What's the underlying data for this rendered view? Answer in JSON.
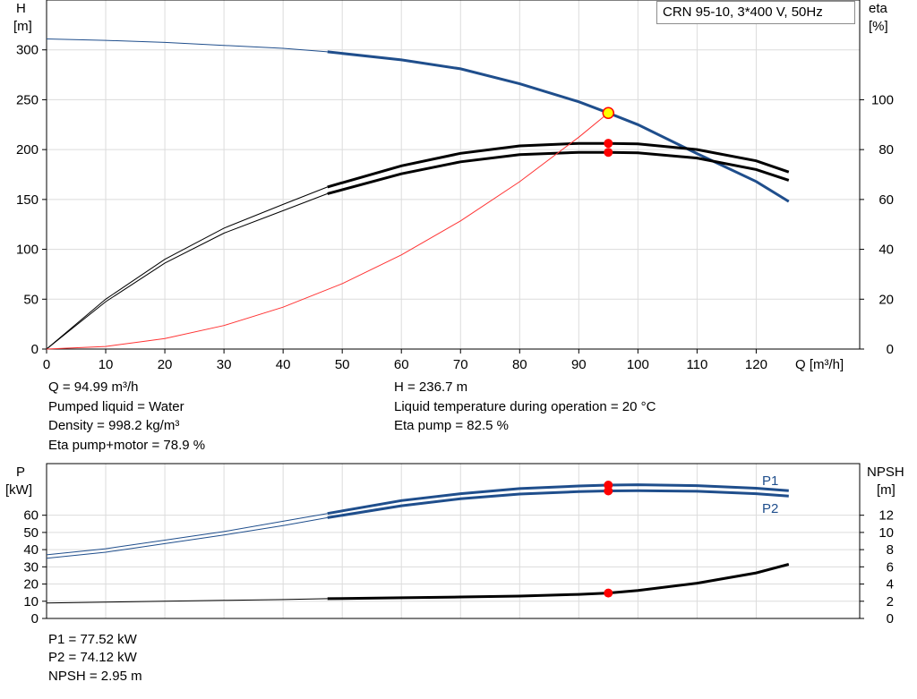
{
  "model": "CRN 95-10, 3*400 V, 50Hz",
  "colors": {
    "head": "#1f4e8c",
    "power": "#1f4e8c",
    "efficiency": "#000000",
    "system_curve": "#ff3333",
    "marker": "#ff0000",
    "duty_point": "#ffff00",
    "grid": "#dcdcdc"
  },
  "info": {
    "q": "Q = 94.99 m³/h",
    "pumped_liquid": "Pumped liquid = Water",
    "density": "Density = 998.2 kg/m³",
    "eta_pump_motor": "Eta pump+motor = 78.9 %",
    "h": "H = 236.7 m",
    "liquid_temp": "Liquid temperature during operation = 20 °C",
    "eta_pump": "Eta pump = 82.5 %",
    "p1": "P1 = 77.52 kW",
    "p2": "P2 = 74.12 kW",
    "npsh": "NPSH = 2.95 m"
  },
  "chart_data": [
    {
      "type": "line",
      "x_label": "Q [m³/h]",
      "y_label_left": [
        "H",
        "[m]"
      ],
      "y_label_right": [
        "eta",
        "[%]"
      ],
      "x_ticks": [
        0,
        10,
        20,
        30,
        40,
        50,
        60,
        70,
        80,
        90,
        100,
        110,
        120
      ],
      "y_left_ticks": [
        0,
        50,
        100,
        150,
        200,
        250,
        300
      ],
      "y_right_ticks": [
        0,
        20,
        40,
        60,
        80,
        100
      ],
      "xlim": [
        0,
        137.5
      ],
      "ylim_left": [
        0,
        350
      ],
      "ylim_right": [
        0,
        140
      ],
      "grid": true,
      "series": [
        {
          "key": "head",
          "axis": "left",
          "x": [
            0,
            10,
            20,
            30,
            40,
            47.5,
            60,
            70,
            80,
            90,
            95,
            100,
            110,
            120,
            125.5
          ],
          "y": [
            311,
            309.5,
            307.5,
            304.5,
            301.5,
            298,
            290,
            281,
            266,
            248,
            236.7,
            225,
            196,
            168,
            148
          ],
          "op_start": 47.5
        },
        {
          "key": "eta_pump",
          "axis": "right",
          "x": [
            0,
            5,
            10,
            20,
            30,
            40,
            47.5,
            60,
            70,
            80,
            90,
            95,
            100,
            110,
            120,
            125.5
          ],
          "y": [
            0,
            10,
            20,
            36,
            48.5,
            58,
            65,
            73.5,
            78.5,
            81.5,
            82.5,
            82.5,
            82.3,
            80,
            75.5,
            71
          ],
          "op_start": 47.5
        },
        {
          "key": "eta_pump_motor",
          "axis": "right",
          "x": [
            0,
            5,
            10,
            20,
            30,
            40,
            47.5,
            60,
            70,
            80,
            90,
            95,
            100,
            110,
            120,
            125.5
          ],
          "y": [
            0,
            9.5,
            19,
            34.5,
            46.5,
            55.5,
            62.3,
            70.3,
            75.1,
            78,
            78.9,
            78.9,
            78.7,
            76.6,
            72,
            67.7
          ],
          "op_start": 47.5
        },
        {
          "key": "system",
          "axis": "left",
          "x": [
            0,
            10,
            20,
            30,
            40,
            50,
            60,
            70,
            80,
            90,
            95
          ],
          "y": [
            0,
            2.6,
            10.5,
            23.6,
            42,
            65.6,
            94.4,
            128.5,
            167.8,
            212.4,
            236.7
          ]
        }
      ],
      "duty_point": {
        "x": 94.99,
        "h": 236.7,
        "eta_pump": 82.5,
        "eta_pump_motor": 78.9
      }
    },
    {
      "type": "line",
      "y_label_left": [
        "P",
        "[kW]"
      ],
      "y_label_right": [
        "NPSH",
        "[m]"
      ],
      "y_left_ticks": [
        0,
        10,
        20,
        30,
        40,
        50,
        60
      ],
      "y_right_ticks": [
        0,
        2,
        4,
        6,
        8,
        10,
        12
      ],
      "ylim_left": [
        0,
        90
      ],
      "ylim_right": [
        0,
        18
      ],
      "grid": true,
      "series": [
        {
          "key": "p1",
          "name": "P1",
          "axis": "left",
          "x": [
            0,
            10,
            20,
            30,
            40,
            47.5,
            60,
            70,
            80,
            90,
            95,
            100,
            110,
            120,
            125.5
          ],
          "y": [
            37,
            40.5,
            45.5,
            50.5,
            56.5,
            61,
            68.5,
            72.5,
            75.5,
            77,
            77.52,
            77.7,
            77.2,
            75.7,
            74.3
          ],
          "op_start": 47.5
        },
        {
          "key": "p2",
          "name": "P2",
          "axis": "left",
          "x": [
            0,
            10,
            20,
            30,
            40,
            47.5,
            60,
            70,
            80,
            90,
            95,
            100,
            110,
            120,
            125.5
          ],
          "y": [
            35,
            38.5,
            43.5,
            48.5,
            54,
            58.6,
            65.5,
            69.6,
            72.3,
            73.7,
            74.12,
            74.3,
            73.9,
            72.5,
            71.1
          ],
          "op_start": 47.5
        },
        {
          "key": "npsh",
          "axis": "right",
          "x": [
            0,
            10,
            20,
            30,
            40,
            47.5,
            60,
            70,
            80,
            90,
            95,
            100,
            110,
            120,
            125.5
          ],
          "y": [
            1.8,
            1.9,
            2,
            2.1,
            2.2,
            2.3,
            2.4,
            2.5,
            2.6,
            2.8,
            2.95,
            3.25,
            4.1,
            5.3,
            6.3
          ],
          "op_start": 47.5
        }
      ],
      "duty_point": {
        "x": 94.99,
        "p1": 77.52,
        "p2": 74.12,
        "npsh": 2.95
      }
    }
  ]
}
